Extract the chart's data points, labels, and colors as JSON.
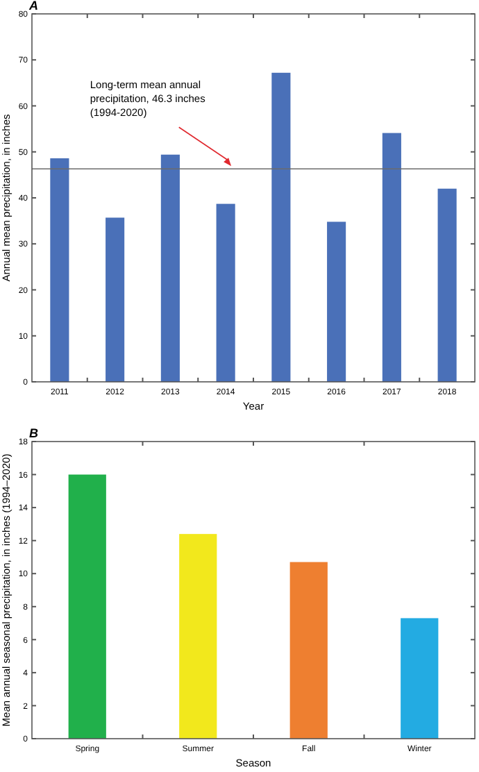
{
  "chart_data": [
    {
      "type": "bar",
      "title": "A",
      "xlabel": "Year",
      "ylabel": "Annual mean precipitation, in inches",
      "categories": [
        "2011",
        "2012",
        "2013",
        "2014",
        "2015",
        "2016",
        "2017",
        "2018"
      ],
      "values": [
        48.6,
        35.7,
        49.4,
        38.7,
        67.2,
        34.8,
        54.1,
        42.0
      ],
      "color": "#4a70b8",
      "ylim": [
        0,
        80
      ],
      "yticks": [
        0,
        10,
        20,
        30,
        40,
        50,
        60,
        70,
        80
      ],
      "grid": false,
      "ref_lines": [
        {
          "axis": "y",
          "value": 46.3,
          "label": "Long-term mean annual\nprecipitation, 46.3 inches\n(1994-2020)",
          "color": "#6b6b6b"
        }
      ]
    },
    {
      "type": "bar",
      "title": "B",
      "xlabel": "Season",
      "ylabel": "Mean annual seasonal precipitation, in inches (1994–2020)",
      "categories": [
        "Spring",
        "Summer",
        "Fall",
        "Winter"
      ],
      "values": [
        16.0,
        12.4,
        10.7,
        7.3
      ],
      "colors": [
        "#21b04b",
        "#f2e81c",
        "#ee7f30",
        "#23abe2"
      ],
      "ylim": [
        0,
        18
      ],
      "yticks": [
        0,
        2,
        4,
        6,
        8,
        10,
        12,
        14,
        16,
        18
      ],
      "grid": false
    }
  ]
}
